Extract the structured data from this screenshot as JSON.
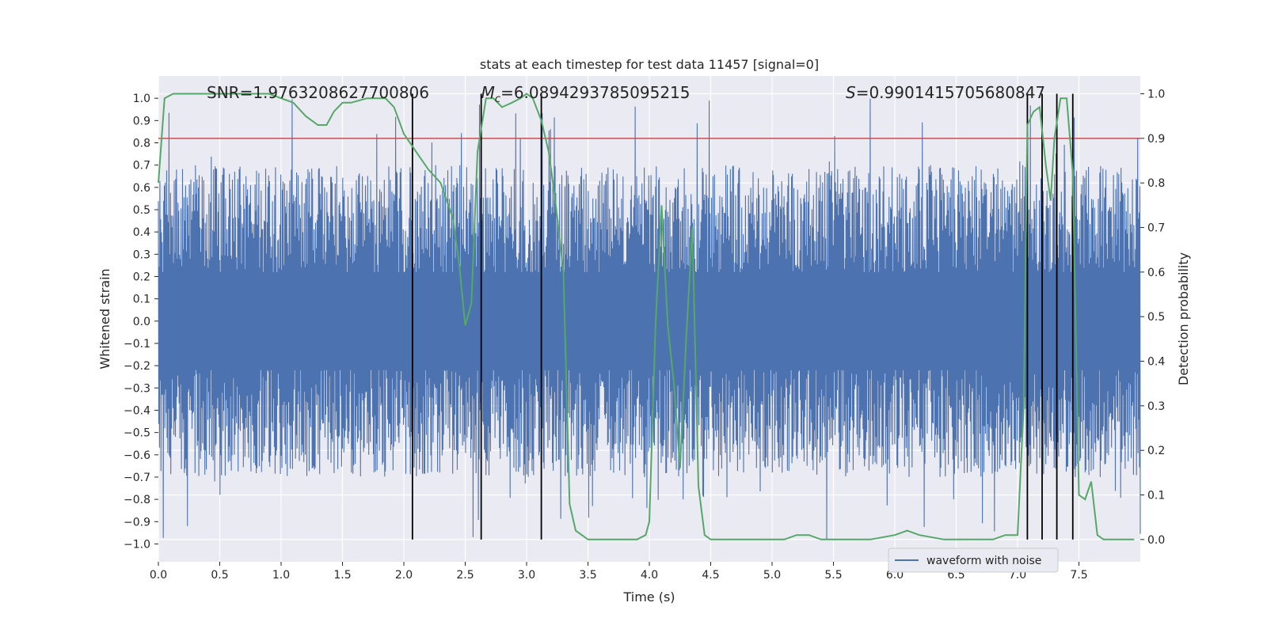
{
  "chart_data": {
    "type": "line",
    "title": "stats at each timestep for test data 11457 [signal=0]",
    "xlabel": "Time (s)",
    "ylabel_left": "Whitened strain",
    "ylabel_right": "Detection probability",
    "xlim": [
      0.0,
      8.0
    ],
    "ylim_left": [
      -1.08,
      1.1
    ],
    "ylim_right": [
      -0.05,
      1.04
    ],
    "x_ticks": [
      0.0,
      0.5,
      1.0,
      1.5,
      2.0,
      2.5,
      3.0,
      3.5,
      4.0,
      4.5,
      5.0,
      5.5,
      6.0,
      6.5,
      7.0,
      7.5
    ],
    "x_tick_labels": [
      "0.0",
      "0.5",
      "1.0",
      "1.5",
      "2.0",
      "2.5",
      "3.0",
      "3.5",
      "4.0",
      "4.5",
      "5.0",
      "5.5",
      "6.0",
      "6.5",
      "7.0",
      "7.5"
    ],
    "y_left_ticks": [
      -1.0,
      -0.9,
      -0.8,
      -0.7,
      -0.6,
      -0.5,
      -0.4,
      -0.3,
      -0.2,
      -0.1,
      0.0,
      0.1,
      0.2,
      0.3,
      0.4,
      0.5,
      0.6,
      0.7,
      0.8,
      0.9,
      1.0
    ],
    "y_left_tick_labels": [
      "−1.0",
      "−0.9",
      "−0.8",
      "−0.7",
      "−0.6",
      "−0.5",
      "−0.4",
      "−0.3",
      "−0.2",
      "−0.1",
      "0.0",
      "0.1",
      "0.2",
      "0.3",
      "0.4",
      "0.5",
      "0.6",
      "0.7",
      "0.8",
      "0.9",
      "1.0"
    ],
    "y_right_ticks": [
      0.0,
      0.1,
      0.2,
      0.3,
      0.4,
      0.5,
      0.6,
      0.7,
      0.8,
      0.9,
      1.0
    ],
    "y_right_tick_labels": [
      "0.0",
      "0.1",
      "0.2",
      "0.3",
      "0.4",
      "0.5",
      "0.6",
      "0.7",
      "0.8",
      "0.9",
      "1.0"
    ],
    "series": [
      {
        "name": "waveform with noise",
        "axis": "left",
        "color": "#4C72B0",
        "note": "dense noisy whitened-strain trace, mostly within ±0.4 with spikes to ±1.0",
        "typical_band": [
          -0.45,
          0.45
        ],
        "range": [
          -0.98,
          1.0
        ]
      },
      {
        "name": "detection probability",
        "axis": "right",
        "color": "#55A868",
        "x": [
          0.0,
          0.05,
          0.12,
          0.3,
          0.6,
          0.9,
          1.0,
          1.1,
          1.2,
          1.3,
          1.37,
          1.43,
          1.5,
          1.57,
          1.7,
          1.85,
          1.92,
          2.0,
          2.05,
          2.1,
          2.2,
          2.3,
          2.4,
          2.45,
          2.5,
          2.55,
          2.6,
          2.67,
          2.73,
          2.8,
          2.88,
          2.95,
          3.0,
          3.05,
          3.12,
          3.18,
          3.23,
          3.3,
          3.35,
          3.4,
          3.5,
          3.6,
          3.7,
          3.8,
          3.9,
          3.97,
          4.0,
          4.05,
          4.1,
          4.15,
          4.2,
          4.25,
          4.3,
          4.35,
          4.4,
          4.45,
          4.5,
          4.6,
          4.8,
          5.0,
          5.1,
          5.2,
          5.3,
          5.4,
          5.5,
          5.6,
          5.8,
          6.0,
          6.1,
          6.2,
          6.4,
          6.6,
          6.8,
          6.9,
          7.0,
          7.05,
          7.08,
          7.13,
          7.18,
          7.23,
          7.27,
          7.3,
          7.35,
          7.4,
          7.45,
          7.5,
          7.55,
          7.6,
          7.65,
          7.7,
          7.75,
          7.85,
          7.95
        ],
        "values": [
          0.8,
          0.99,
          1.0,
          1.0,
          1.0,
          1.0,
          0.99,
          0.98,
          0.95,
          0.93,
          0.93,
          0.96,
          0.98,
          0.98,
          0.99,
          0.99,
          0.97,
          0.91,
          0.89,
          0.87,
          0.83,
          0.8,
          0.72,
          0.62,
          0.48,
          0.53,
          0.87,
          0.99,
          0.99,
          0.97,
          0.98,
          0.99,
          1.0,
          0.99,
          0.94,
          0.87,
          0.77,
          0.6,
          0.08,
          0.02,
          0.0,
          0.0,
          0.0,
          0.0,
          0.0,
          0.01,
          0.04,
          0.48,
          0.75,
          0.48,
          0.35,
          0.16,
          0.45,
          0.7,
          0.12,
          0.01,
          0.0,
          0.0,
          0.0,
          0.0,
          0.0,
          0.01,
          0.01,
          0.0,
          0.0,
          0.0,
          0.0,
          0.01,
          0.02,
          0.01,
          0.0,
          0.0,
          0.0,
          0.01,
          0.01,
          0.3,
          0.93,
          0.96,
          0.97,
          0.84,
          0.76,
          0.9,
          0.99,
          0.99,
          0.82,
          0.1,
          0.09,
          0.13,
          0.01,
          0.0,
          0.0,
          0.0,
          0.0
        ]
      }
    ],
    "hlines": [
      {
        "axis": "right",
        "value": 0.9,
        "color": "#C44E52"
      }
    ],
    "vlines": [
      {
        "x": 2.07,
        "color": "#000000"
      },
      {
        "x": 2.63,
        "color": "#000000"
      },
      {
        "x": 3.12,
        "color": "#000000"
      },
      {
        "x": 7.08,
        "color": "#000000"
      },
      {
        "x": 7.2,
        "color": "#000000"
      },
      {
        "x": 7.32,
        "color": "#000000"
      },
      {
        "x": 7.45,
        "color": "#000000"
      }
    ],
    "annotations": [
      {
        "name": "snr",
        "label": "SNR",
        "value": "1.9763208627700806",
        "anchor_x": 0.2
      },
      {
        "name": "chirp-mass",
        "label": "M",
        "subscript": "c",
        "value": "6.0894293785095215",
        "anchor_x": 2.63
      },
      {
        "name": "s-stat",
        "label": "S",
        "value": "0.9901415705680847",
        "anchor_x": 5.6
      }
    ],
    "legend": {
      "position": "lower-right",
      "entries": [
        "waveform with noise"
      ]
    },
    "grid": true,
    "background": "#EAEAF2"
  }
}
